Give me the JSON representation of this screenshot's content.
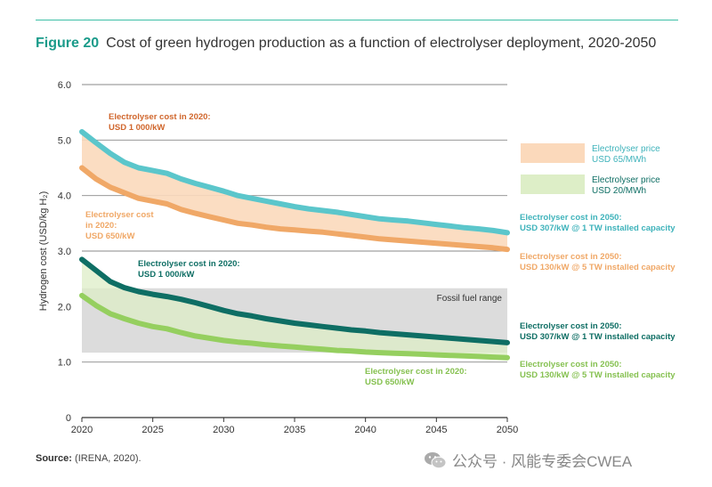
{
  "figure": {
    "label": "Figure 20",
    "title": "Cost of green hydrogen production as a function of electrolyser deployment, 2020-2050"
  },
  "source": {
    "label": "Source:",
    "text": " (IRENA, 2020)."
  },
  "watermark": {
    "text": "公众号 · 风能专委会CWEA"
  },
  "colors": {
    "teal_light": "#5bc6cb",
    "orange": "#f0a867",
    "orange_band": "#fbd9bb",
    "teal_dark": "#0e6e64",
    "green": "#95cf5f",
    "green_band": "#ddeec7",
    "fossil_band": "#dcdcdc",
    "label_orange_dark": "#d0662c",
    "label_orange": "#f0a867",
    "label_teal": "#3fb3bb",
    "label_teal_dark": "#0e6e64",
    "label_green": "#86c151"
  },
  "chart_data": {
    "type": "line",
    "ylabel": "Hydrogen cost (USD/kg H₂)",
    "xlabel": "",
    "xlim": [
      2020,
      2050
    ],
    "ylim": [
      0,
      6
    ],
    "xticks": [
      "2020",
      "2025",
      "2030",
      "2035",
      "2040",
      "2045",
      "2050"
    ],
    "yticks": [
      "0",
      "1.0",
      "2.0",
      "3.0",
      "4.0",
      "5.0",
      "6.0"
    ],
    "grid": true,
    "x": [
      2020,
      2021,
      2022,
      2023,
      2024,
      2025,
      2026,
      2027,
      2028,
      2029,
      2030,
      2031,
      2032,
      2033,
      2034,
      2035,
      2036,
      2037,
      2038,
      2039,
      2040,
      2041,
      2042,
      2043,
      2044,
      2045,
      2046,
      2047,
      2048,
      2049,
      2050
    ],
    "series": [
      {
        "name": "Electrolyser price USD 65/MWh — Electrolyser cost in 2020: USD 1 000/kW",
        "values": [
          5.15,
          4.95,
          4.76,
          4.6,
          4.5,
          4.45,
          4.4,
          4.3,
          4.22,
          4.15,
          4.08,
          4.0,
          3.95,
          3.9,
          3.85,
          3.8,
          3.76,
          3.73,
          3.7,
          3.66,
          3.62,
          3.58,
          3.56,
          3.54,
          3.51,
          3.48,
          3.45,
          3.42,
          3.4,
          3.37,
          3.33
        ]
      },
      {
        "name": "Electrolyser price USD 65/MWh — Electrolyser cost in 2020: USD 650/kW",
        "values": [
          4.5,
          4.3,
          4.15,
          4.05,
          3.95,
          3.9,
          3.85,
          3.75,
          3.68,
          3.62,
          3.56,
          3.5,
          3.47,
          3.43,
          3.4,
          3.38,
          3.36,
          3.34,
          3.31,
          3.28,
          3.25,
          3.22,
          3.2,
          3.18,
          3.16,
          3.14,
          3.12,
          3.1,
          3.08,
          3.06,
          3.03
        ]
      },
      {
        "name": "Electrolyser price USD 20/MWh — Electrolyser cost in 2020: USD 1 000/kW",
        "values": [
          2.85,
          2.65,
          2.45,
          2.34,
          2.27,
          2.22,
          2.18,
          2.13,
          2.07,
          2.0,
          1.93,
          1.87,
          1.83,
          1.78,
          1.74,
          1.7,
          1.67,
          1.64,
          1.61,
          1.58,
          1.56,
          1.53,
          1.51,
          1.49,
          1.47,
          1.45,
          1.43,
          1.41,
          1.39,
          1.37,
          1.35
        ]
      },
      {
        "name": "Electrolyser price USD 20/MWh — Electrolyser cost in 2020: USD 650/kW",
        "values": [
          2.2,
          2.02,
          1.87,
          1.78,
          1.7,
          1.64,
          1.6,
          1.53,
          1.47,
          1.43,
          1.39,
          1.36,
          1.34,
          1.31,
          1.29,
          1.27,
          1.25,
          1.23,
          1.21,
          1.2,
          1.18,
          1.17,
          1.16,
          1.15,
          1.14,
          1.13,
          1.12,
          1.11,
          1.1,
          1.09,
          1.08
        ]
      }
    ],
    "bands": [
      {
        "name": "Fossil fuel range",
        "y0": 1.17,
        "y1": 2.33
      }
    ],
    "legend": {
      "placement": "right",
      "entries": [
        {
          "label_line1": "Electrolyser price",
          "label_line2": "USD 65/MWh",
          "swatch": "orange_band",
          "text_color": "label_teal"
        },
        {
          "label_line1": "Electrolyser price",
          "label_line2": "USD 20/MWh",
          "swatch": "green_band",
          "text_color": "label_teal_dark"
        }
      ]
    },
    "annotations": [
      {
        "id": "a1",
        "lines": [
          "Electrolyser cost in 2020:",
          "USD 1 000/kW"
        ],
        "color": "label_orange_dark"
      },
      {
        "id": "a2",
        "lines": [
          "Electrolyser cost",
          "in 2020:",
          "USD 650/kW"
        ],
        "color": "label_orange"
      },
      {
        "id": "a3",
        "lines": [
          "Electrolyser cost in 2020:",
          "USD 1 000/kW"
        ],
        "color": "label_teal_dark"
      },
      {
        "id": "a4",
        "lines": [
          "Electrolyser cost in 2020:",
          "USD 650/kW"
        ],
        "color": "label_green"
      },
      {
        "id": "a5",
        "lines": [
          "Electrolyser cost in 2050:",
          "USD 307/kW @ 1 TW installed capacity"
        ],
        "color": "label_teal"
      },
      {
        "id": "a6",
        "lines": [
          "Electrolyser cost in 2050:",
          "USD 130/kW @ 5 TW installed capacity"
        ],
        "color": "label_orange"
      },
      {
        "id": "a7",
        "lines": [
          "Electrolyser cost in 2050:",
          "USD 307/kW @ 1 TW installed capacity"
        ],
        "color": "label_teal_dark"
      },
      {
        "id": "a8",
        "lines": [
          "Electrolyser cost in 2050:",
          "USD 130/kW @ 5 TW installed capacity"
        ],
        "color": "label_green"
      }
    ]
  }
}
